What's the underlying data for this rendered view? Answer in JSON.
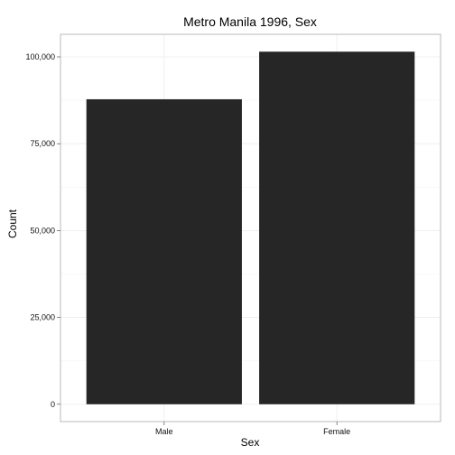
{
  "chart_data": {
    "type": "bar",
    "title": "Metro Manila 1996, Sex",
    "xlabel": "Sex",
    "ylabel": "Count",
    "categories": [
      "Male",
      "Female"
    ],
    "values": [
      87800,
      101500
    ],
    "ylim": [
      -5000,
      106500
    ],
    "yticks": [
      0,
      25000,
      50000,
      75000,
      100000
    ],
    "ytick_labels": [
      "0",
      "25,000",
      "50,000",
      "75,000",
      "100,000"
    ],
    "grid": true,
    "bar_color": "#262626",
    "grid_color": "#ececec",
    "panel_border_color": "#b3b3b3"
  }
}
